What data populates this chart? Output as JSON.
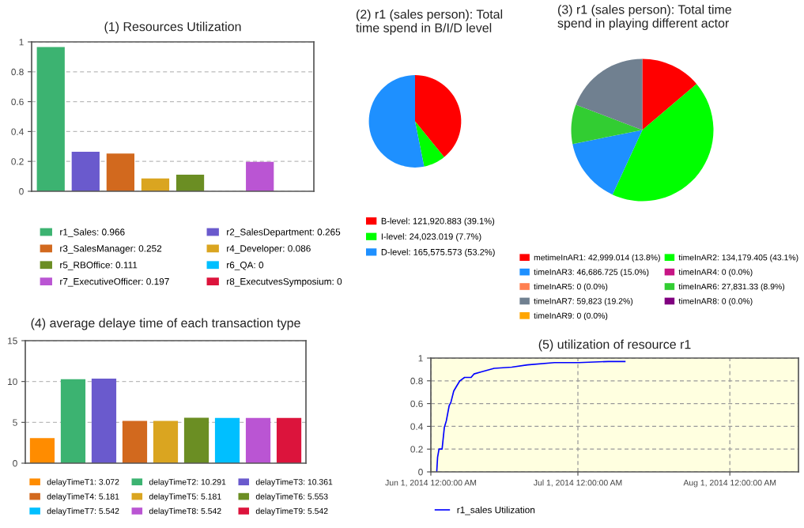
{
  "chart_data": [
    {
      "type": "bar",
      "title": "(1) Resources Utilization",
      "stacked": true,
      "categories": [
        null,
        null,
        null,
        null,
        null,
        null,
        null,
        null
      ],
      "series": [
        {
          "name": "r1_Sales: 0.966",
          "color": "#3cb371",
          "values": [
            0.966,
            null,
            null,
            null,
            null,
            null,
            null,
            null
          ]
        },
        {
          "name": "r2_SalesDepartment: 0.265",
          "color": "#6a5acd",
          "values": [
            null,
            0.265,
            null,
            null,
            null,
            null,
            null,
            null
          ]
        },
        {
          "name": "r3_SalesManager: 0.252",
          "color": "#d2691e",
          "values": [
            null,
            null,
            0.252,
            null,
            null,
            null,
            null,
            null
          ]
        },
        {
          "name": "r4_Developer: 0.086",
          "color": "#daa520",
          "values": [
            null,
            null,
            null,
            0.086,
            null,
            null,
            null,
            null
          ]
        },
        {
          "name": "r5_RBOffice: 0.111",
          "color": "#6b8e23",
          "values": [
            null,
            null,
            null,
            null,
            0.111,
            null,
            null,
            null
          ]
        },
        {
          "name": "r6_QA: 0",
          "color": "#00bfff",
          "values": [
            null,
            null,
            null,
            null,
            null,
            0,
            null,
            null
          ]
        },
        {
          "name": "r7_ExecutiveOfficer: 0.197",
          "color": "#ba55d3",
          "values": [
            null,
            null,
            null,
            null,
            null,
            null,
            0.197,
            null
          ]
        },
        {
          "name": "r8_ExecutvesSymposium: 0",
          "color": "#dc143c",
          "values": [
            null,
            null,
            null,
            null,
            null,
            null,
            null,
            0
          ]
        }
      ],
      "ylim": [
        0,
        1
      ],
      "yticks": [
        0,
        0.2,
        0.4,
        0.6,
        0.8,
        1
      ],
      "grid": "y",
      "legend": "bottom",
      "tick_labels": "y"
    },
    {
      "type": "pie",
      "title": "(2) r1 (sales person): Total time spend in B/I/D level",
      "categories": [
        "B-level",
        "I-level",
        "D-level"
      ],
      "values": [
        121920.883,
        24023.019,
        165575.573
      ],
      "value_labels": [
        "121,920.883 (39.1%)",
        "24,023.019 (7.7%)",
        "165,575.573 (53.2%)"
      ],
      "colors": [
        "#ff0000",
        "#00ff00",
        "#1e90ff"
      ],
      "legend": "bottom"
    },
    {
      "type": "pie",
      "title": "(3) r1 (sales person): Total time spend in playing different actor",
      "categories": [
        "metimeInAR1",
        "timeInAR2",
        "timeInAR3",
        "timeInAR4",
        "timeInAR5",
        "timeInAR6",
        "timeInAR7",
        "timeInAR8",
        "timeInAR9"
      ],
      "values": [
        42999.014,
        134179.405,
        46686.725,
        0,
        0,
        27831.33,
        59823,
        0,
        0
      ],
      "value_labels": [
        "42,999.014 (13.8%)",
        "134,179.405 (43.1%)",
        "46,686.725 (15.0%)",
        "0 (0.0%)",
        "0 (0.0%)",
        "27,831.33 (8.9%)",
        "59,823 (19.2%)",
        "0 (0.0%)",
        "0 (0.0%)"
      ],
      "colors": [
        "#ff0000",
        "#00ff00",
        "#1e90ff",
        "#c71585",
        "#ff7f50",
        "#32cd32",
        "#708090",
        "#800080",
        "#ffa500"
      ],
      "legend": "bottom"
    },
    {
      "type": "bar",
      "title": "(4) average delaye time of each transaction type",
      "stacked": true,
      "categories": [
        null,
        null,
        null,
        null,
        null,
        null,
        null,
        null,
        null
      ],
      "series": [
        {
          "name": "delayTimeT1: 3.072",
          "color": "#ff8c00",
          "values": [
            3.072,
            null,
            null,
            null,
            null,
            null,
            null,
            null,
            null
          ]
        },
        {
          "name": "delayTimeT2: 10.291",
          "color": "#3cb371",
          "values": [
            null,
            10.291,
            null,
            null,
            null,
            null,
            null,
            null,
            null
          ]
        },
        {
          "name": "delayTimeT3: 10.361",
          "color": "#6a5acd",
          "values": [
            null,
            null,
            10.361,
            null,
            null,
            null,
            null,
            null,
            null
          ]
        },
        {
          "name": "delayTimeT4: 5.181",
          "color": "#d2691e",
          "values": [
            null,
            null,
            null,
            5.181,
            null,
            null,
            null,
            null,
            null
          ]
        },
        {
          "name": "delayTimeT5: 5.181",
          "color": "#daa520",
          "values": [
            null,
            null,
            null,
            null,
            5.181,
            null,
            null,
            null,
            null
          ]
        },
        {
          "name": "delayTimeT6: 5.553",
          "color": "#6b8e23",
          "values": [
            null,
            null,
            null,
            null,
            null,
            5.553,
            null,
            null,
            null
          ]
        },
        {
          "name": "delayTimeT7: 5.542",
          "color": "#00bfff",
          "values": [
            null,
            null,
            null,
            null,
            null,
            null,
            5.542,
            null,
            null
          ]
        },
        {
          "name": "delayTimeT8: 5.542",
          "color": "#ba55d3",
          "values": [
            null,
            null,
            null,
            null,
            null,
            null,
            null,
            5.542,
            null
          ]
        },
        {
          "name": "delayTimeT9: 5.542",
          "color": "#dc143c",
          "values": [
            null,
            null,
            null,
            null,
            null,
            null,
            null,
            null,
            5.542
          ]
        }
      ],
      "ylim": [
        0,
        15
      ],
      "yticks": [
        0,
        5,
        10,
        15
      ],
      "grid": "y",
      "legend": "bottom",
      "tick_labels": "y"
    },
    {
      "type": "line",
      "title": "(5) utilization of resource r1",
      "series": [
        {
          "name": "r1_sales Utilization",
          "color": "#0000ff",
          "x": [
            "2014-06-02T04:48",
            "2014-06-02T09:00",
            "2014-06-02T16:00",
            "2014-06-03T07:00",
            "2014-06-03T18:00",
            "2014-06-04T04:00",
            "2014-06-04T17:30",
            "2014-06-05T02:00",
            "2014-06-05T16:00",
            "2014-06-06T05:00",
            "2014-06-06T22:00",
            "2014-06-07T21:00",
            "2014-06-09T05:00",
            "2014-06-09T19:00",
            "2014-06-11T10:00",
            "2014-06-13T22:00",
            "2014-06-17T12:00",
            "2014-06-20T17:00",
            "2014-06-26T05:00",
            "2014-07-01T05:00",
            "2014-07-07T05:00",
            "2014-07-10T14:00"
          ],
          "values": [
            0,
            0.13,
            0.2,
            0.2,
            0.39,
            0.45,
            0.58,
            0.61,
            0.71,
            0.75,
            0.8,
            0.83,
            0.83,
            0.86,
            0.88,
            0.91,
            0.92,
            0.94,
            0.96,
            0.96,
            0.97,
            0.97
          ]
        }
      ],
      "xlim": [
        "2014-06-01",
        "2014-08-15"
      ],
      "xticks": [
        {
          "value": "2014-06-01",
          "label": "Jun 1, 2014 12:00:00 AM"
        },
        {
          "value": "2014-07-01",
          "label": "Jul 1, 2014 12:00:00 AM"
        },
        {
          "value": "2014-08-01",
          "label": "Aug 1, 2014 12:00:00 AM"
        }
      ],
      "ylim": [
        0,
        1
      ],
      "yticks": [
        0,
        0.2,
        0.4,
        0.6,
        0.8,
        1
      ],
      "grid": true,
      "legend": "bottom",
      "marker": "none",
      "line_style": "solid"
    }
  ]
}
